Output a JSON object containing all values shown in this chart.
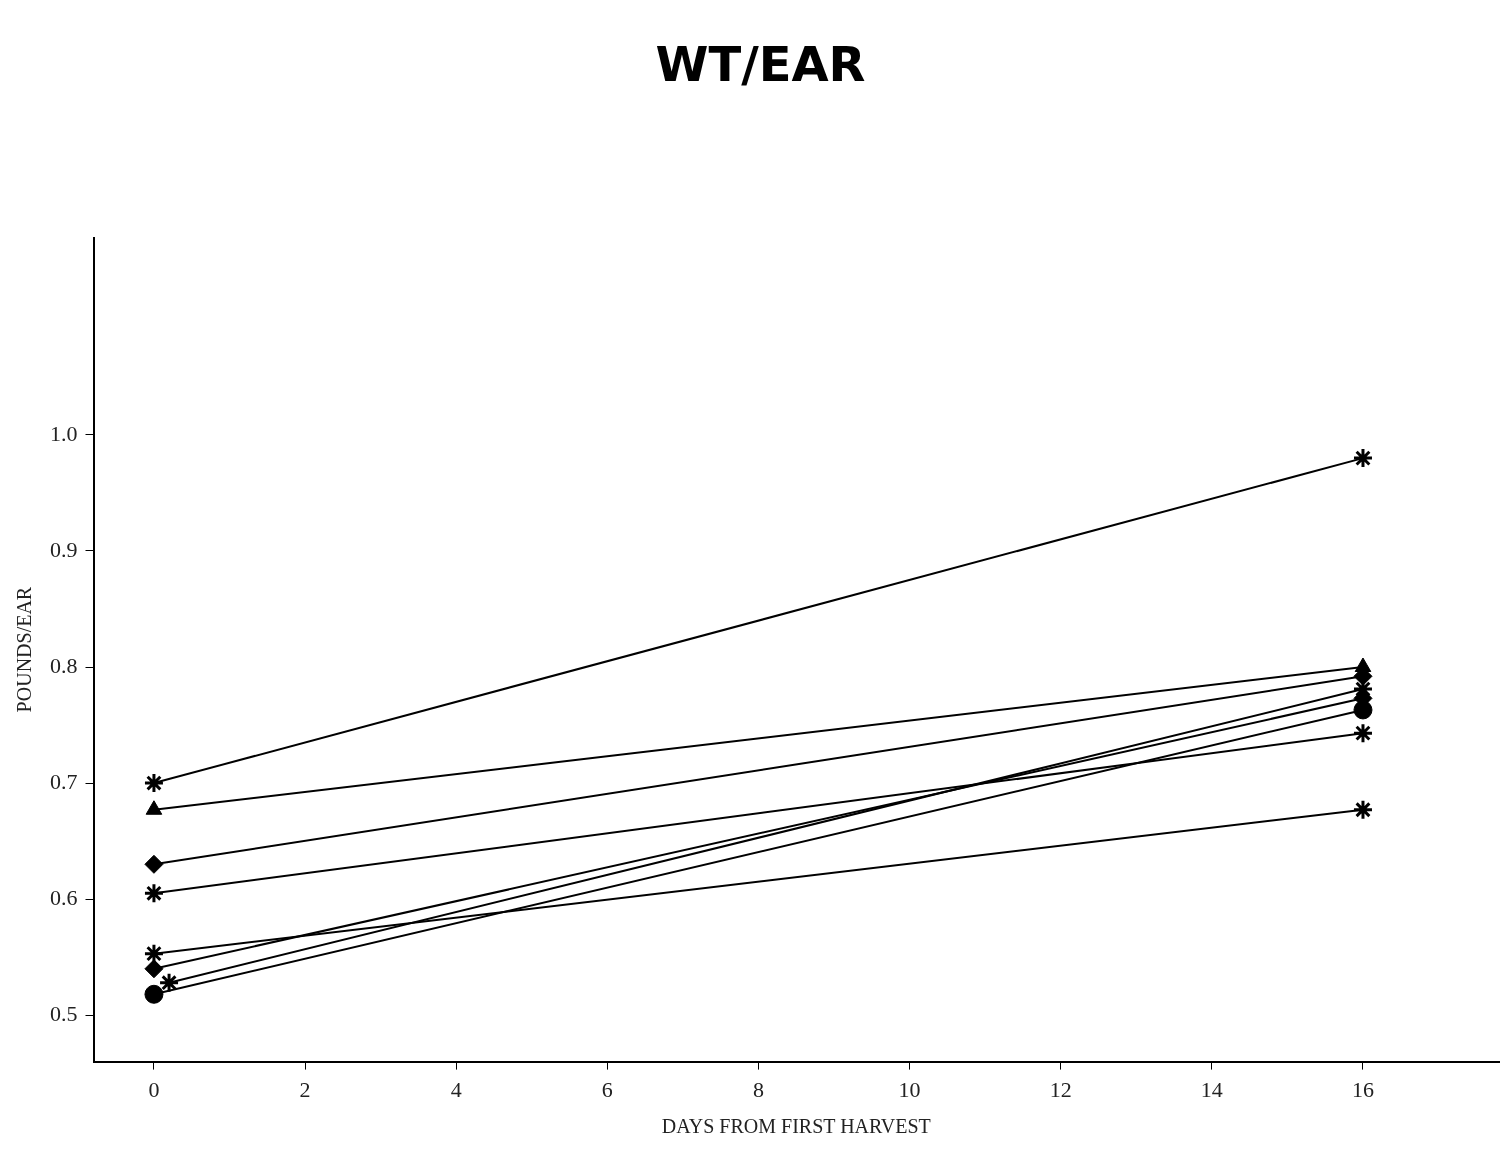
{
  "chart_data": {
    "type": "line",
    "title": "WT/EAR",
    "xlabel": "DAYS FROM FIRST HARVEST",
    "ylabel": "POUNDS/EAR",
    "xlim": [
      -0.8,
      17.8
    ],
    "xticks": [
      0,
      2,
      4,
      6,
      8,
      10,
      12,
      14,
      16
    ],
    "ylim": [
      0.46,
      1.17
    ],
    "yticks": [
      0.5,
      0.6,
      0.7,
      0.8,
      0.9,
      {
        "value": 1,
        "label": "1.0"
      }
    ],
    "grid": false,
    "legend": false,
    "line_style": "solid",
    "series": [
      {
        "x": [
          0,
          16
        ],
        "values": [
          0.7,
          0.98
        ],
        "color": "#000000",
        "marker": "cross"
      },
      {
        "x": [
          0,
          16
        ],
        "values": [
          0.677,
          0.8
        ],
        "color": "#000000",
        "marker": "triangle"
      },
      {
        "x": [
          0,
          16
        ],
        "values": [
          0.63,
          0.792
        ],
        "color": "#000000",
        "marker": "diamond"
      },
      {
        "x": [
          0,
          16
        ],
        "values": [
          0.605,
          0.743
        ],
        "color": "#000000",
        "marker": "cross"
      },
      {
        "x": [
          0,
          16
        ],
        "values": [
          0.553,
          0.677
        ],
        "color": "#000000",
        "marker": "cross"
      },
      {
        "x": [
          0,
          16
        ],
        "values": [
          0.54,
          0.773
        ],
        "color": "#000000",
        "marker": "diamond"
      },
      {
        "x": [
          0.2,
          16
        ],
        "values": [
          0.528,
          0.781
        ],
        "color": "#000000",
        "marker": "cross"
      },
      {
        "x": [
          0,
          16
        ],
        "values": [
          0.518,
          0.763
        ],
        "color": "#000000",
        "marker": "circle"
      }
    ]
  }
}
